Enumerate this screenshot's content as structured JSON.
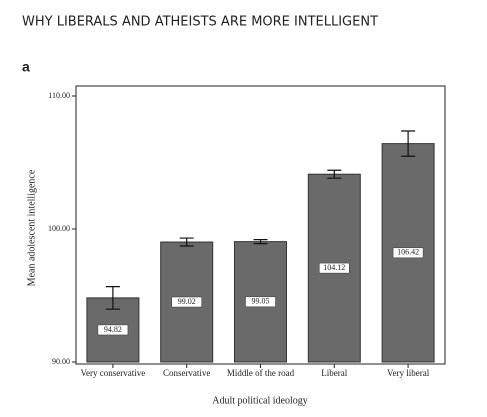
{
  "chart_data": {
    "type": "bar",
    "heading": "WHY LIBERALS AND ATHEISTS ARE MORE INTELLIGENT",
    "panel": "a",
    "x_label": "Adult political ideology",
    "y_label": "Mean adolescent intelligence",
    "categories": [
      "Very conservative",
      "Conservative",
      "Middle of the road",
      "Liberal",
      "Very liberal"
    ],
    "values": [
      94.82,
      99.02,
      99.05,
      104.12,
      106.42
    ],
    "errors": [
      0.85,
      0.3,
      0.15,
      0.3,
      0.95
    ],
    "color": "#6a6a6a",
    "ylim": [
      90,
      110
    ],
    "yticks": [
      {
        "value": 90,
        "label": "90.00"
      },
      {
        "value": 100,
        "label": "100.00"
      },
      {
        "value": 110,
        "label": "110.00"
      }
    ],
    "grid": false
  }
}
